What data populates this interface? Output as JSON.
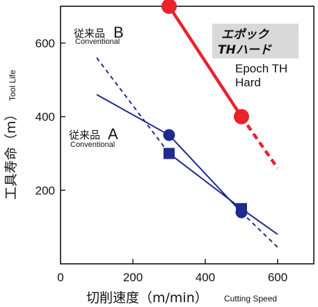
{
  "chart_data": {
    "type": "line",
    "xlabel": "切削速度（m/min）",
    "xlabel_en": "Cutting Speed",
    "ylabel": "工具寿命（m）",
    "ylabel_en": "Tool Life",
    "xlim": [
      0,
      700
    ],
    "ylim": [
      0,
      700
    ],
    "xticks": [
      0,
      200,
      400,
      600
    ],
    "yticks": [
      200,
      400,
      600
    ],
    "grid": false,
    "series": [
      {
        "id": "epoch",
        "label_ja": "エポック",
        "label_ja2": "THハード",
        "label_en": "Epoch TH",
        "label_en2": "Hard",
        "color": "#e8232b",
        "marker": "circle",
        "points": [
          {
            "x": 300,
            "y": 700
          },
          {
            "x": 500,
            "y": 400
          }
        ],
        "solid": [
          [
            300,
            700
          ],
          [
            500,
            400
          ]
        ],
        "dashed": [
          [
            500,
            400
          ],
          [
            600,
            260
          ]
        ]
      },
      {
        "id": "A-circle",
        "label_ja": "従来品",
        "label_letter": "A",
        "label_en": "Conventional",
        "color": "#1f2a8c",
        "marker": "circle",
        "points": [
          {
            "x": 300,
            "y": 350
          },
          {
            "x": 500,
            "y": 140
          }
        ],
        "solid": [
          [
            100,
            460
          ],
          [
            300,
            350
          ],
          [
            500,
            140
          ]
        ],
        "dashed": [
          [
            500,
            140
          ],
          [
            600,
            45
          ]
        ]
      },
      {
        "id": "B-square",
        "label_ja": "従来品",
        "label_letter": "B",
        "label_en": "Conventional",
        "color": "#1f2a8c",
        "marker": "square",
        "points": [
          {
            "x": 300,
            "y": 300
          },
          {
            "x": 500,
            "y": 150
          }
        ],
        "dashed": [
          [
            100,
            560
          ],
          [
            300,
            300
          ]
        ],
        "solid": [
          [
            300,
            300
          ],
          [
            500,
            150
          ],
          [
            600,
            80
          ]
        ]
      }
    ]
  }
}
